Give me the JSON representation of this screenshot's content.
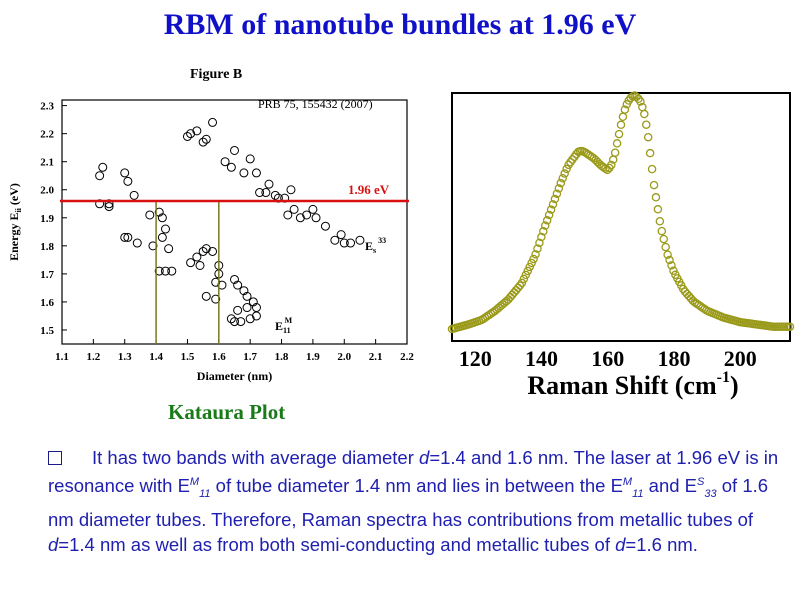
{
  "page_title": "RBM of nanotube bundles at 1.96 eV",
  "kataura_caption": "Kataura Plot",
  "paragraph": {
    "t1": "It has two bands with average diameter ",
    "d": "d",
    "t2": "=1.4 and 1.6 nm. The laser at 1.96 eV is in resonance with E",
    "M": "M",
    "s11": "11",
    "t3": " of tube diameter 1.4 nm and lies in between the E",
    "t4": " and E",
    "S": "S",
    "s33": "33",
    "t5": " of 1.6 nm diameter tubes. Therefore, Raman spectra has contributions from metallic tubes of ",
    "t6": "=1.4 nm as well as from both semi-conducting and metallic tubes of ",
    "t7": "=1.6 nm."
  },
  "chart_data": [
    {
      "type": "scatter",
      "title": "Figure B",
      "reference": "PRB 75, 155432 (2007)",
      "xlabel": "Diameter (nm)",
      "ylabel": "Energy E",
      "ylabel_sub": "ii",
      "ylabel_unit": " (eV)",
      "xlim": [
        1.1,
        2.2
      ],
      "ylim": [
        1.45,
        2.32
      ],
      "xticks": [
        1.1,
        1.2,
        1.3,
        1.4,
        1.5,
        1.6,
        1.7,
        1.8,
        1.9,
        2.0,
        2.1,
        2.2
      ],
      "xtick_labels": [
        "1.1",
        "1.2",
        "1.3",
        "1.4",
        "1.5",
        "1.6",
        "1.7",
        "1.8",
        "1.9",
        "2.0",
        "2.1",
        "2.2"
      ],
      "yticks": [
        1.5,
        1.6,
        1.7,
        1.8,
        1.9,
        2.0,
        2.1,
        2.2,
        2.3
      ],
      "ytick_labels": [
        "1.5",
        "1.6",
        "1.7",
        "1.8",
        "1.9",
        "2.0",
        "2.1",
        "2.2",
        "2.3"
      ],
      "laser_line": {
        "y": 1.96,
        "label": "1.96 eV",
        "color": "#d81010"
      },
      "diameter_markers": {
        "x": [
          1.4,
          1.6
        ],
        "color": "#7a7a20"
      },
      "annotations": {
        "es33": {
          "base": "E",
          "sub": "s",
          "sup": "33"
        },
        "em11": {
          "base": "E",
          "sub": "11",
          "sup": "M"
        }
      },
      "points_x": [
        1.22,
        1.23,
        1.25,
        1.3,
        1.31,
        1.33,
        1.25,
        1.22,
        1.3,
        1.31,
        1.34,
        1.39,
        1.38,
        1.41,
        1.42,
        1.43,
        1.42,
        1.44,
        1.41,
        1.43,
        1.45,
        1.5,
        1.51,
        1.53,
        1.56,
        1.58,
        1.55,
        1.62,
        1.64,
        1.65,
        1.68,
        1.7,
        1.72,
        1.73,
        1.75,
        1.76,
        1.78,
        1.79,
        1.81,
        1.83,
        1.84,
        1.82,
        1.86,
        1.88,
        1.91,
        1.9,
        1.94,
        1.97,
        1.99,
        2.0,
        2.02,
        2.05,
        1.51,
        1.53,
        1.55,
        1.56,
        1.58,
        1.6,
        1.59,
        1.54,
        1.56,
        1.59,
        1.61,
        1.6,
        1.65,
        1.66,
        1.68,
        1.69,
        1.71,
        1.72,
        1.65,
        1.67,
        1.7,
        1.64,
        1.66,
        1.72,
        1.69
      ],
      "points_y": [
        2.05,
        2.08,
        1.94,
        2.06,
        2.03,
        1.98,
        1.95,
        1.95,
        1.83,
        1.83,
        1.81,
        1.8,
        1.91,
        1.92,
        1.9,
        1.86,
        1.83,
        1.79,
        1.71,
        1.71,
        1.71,
        2.19,
        2.2,
        2.21,
        2.18,
        2.24,
        2.17,
        2.1,
        2.08,
        2.14,
        2.06,
        2.11,
        2.06,
        1.99,
        1.99,
        2.02,
        1.98,
        1.97,
        1.97,
        2.0,
        1.93,
        1.91,
        1.9,
        1.91,
        1.9,
        1.93,
        1.87,
        1.82,
        1.84,
        1.81,
        1.81,
        1.82,
        1.74,
        1.76,
        1.78,
        1.79,
        1.78,
        1.7,
        1.67,
        1.73,
        1.62,
        1.61,
        1.66,
        1.73,
        1.68,
        1.66,
        1.64,
        1.62,
        1.6,
        1.58,
        1.53,
        1.53,
        1.54,
        1.54,
        1.57,
        1.55,
        1.58
      ]
    },
    {
      "type": "line",
      "marker": "circle",
      "color": "#9a9a1a",
      "xlabel": "Raman Shift (cm",
      "xlabel_sup": "-1",
      "xlabel_end": ")",
      "xlim": [
        113,
        215
      ],
      "ylim": [
        0,
        1.04
      ],
      "xticks": [
        120,
        140,
        160,
        180,
        200
      ],
      "xtick_labels": [
        "120",
        "140",
        "160",
        "180",
        "200"
      ],
      "x": [
        113,
        118,
        122,
        126,
        130,
        134,
        138,
        141,
        144,
        146,
        148,
        150,
        151,
        152,
        153,
        154,
        156,
        158,
        160,
        161,
        162,
        163,
        164,
        165,
        166,
        167,
        168,
        169,
        170,
        171,
        172,
        173,
        174,
        176,
        178,
        180,
        183,
        186,
        190,
        195,
        200,
        205,
        210,
        215
      ],
      "y": [
        0.0,
        0.02,
        0.04,
        0.08,
        0.13,
        0.2,
        0.32,
        0.45,
        0.57,
        0.65,
        0.72,
        0.76,
        0.78,
        0.785,
        0.78,
        0.77,
        0.75,
        0.72,
        0.7,
        0.72,
        0.76,
        0.83,
        0.9,
        0.96,
        1.0,
        1.02,
        1.03,
        1.02,
        1.0,
        0.95,
        0.87,
        0.75,
        0.63,
        0.45,
        0.33,
        0.25,
        0.17,
        0.12,
        0.08,
        0.05,
        0.03,
        0.02,
        0.01,
        0.01
      ]
    }
  ]
}
